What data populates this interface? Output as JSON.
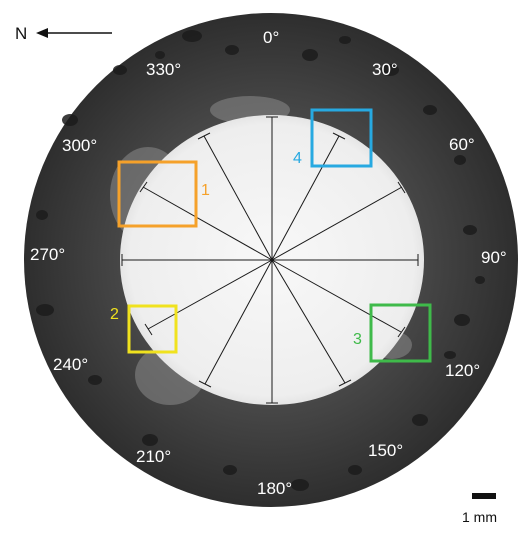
{
  "compass": {
    "label": "N"
  },
  "angles": [
    "0°",
    "30°",
    "60°",
    "90°",
    "120°",
    "150°",
    "180°",
    "210°",
    "240°",
    "270°",
    "300°",
    "330°"
  ],
  "boxes": [
    {
      "label": "1",
      "color": "#f5a12a"
    },
    {
      "label": "2",
      "color": "#f0e21e"
    },
    {
      "label": "3",
      "color": "#3fba4a"
    },
    {
      "label": "4",
      "color": "#27a9e1"
    }
  ],
  "scale_bar": {
    "label": "1 mm"
  },
  "colors": {
    "disk_outer": "#3c3c3c",
    "bore": "#f4f4f4",
    "spokes": "#1a1a1a"
  }
}
